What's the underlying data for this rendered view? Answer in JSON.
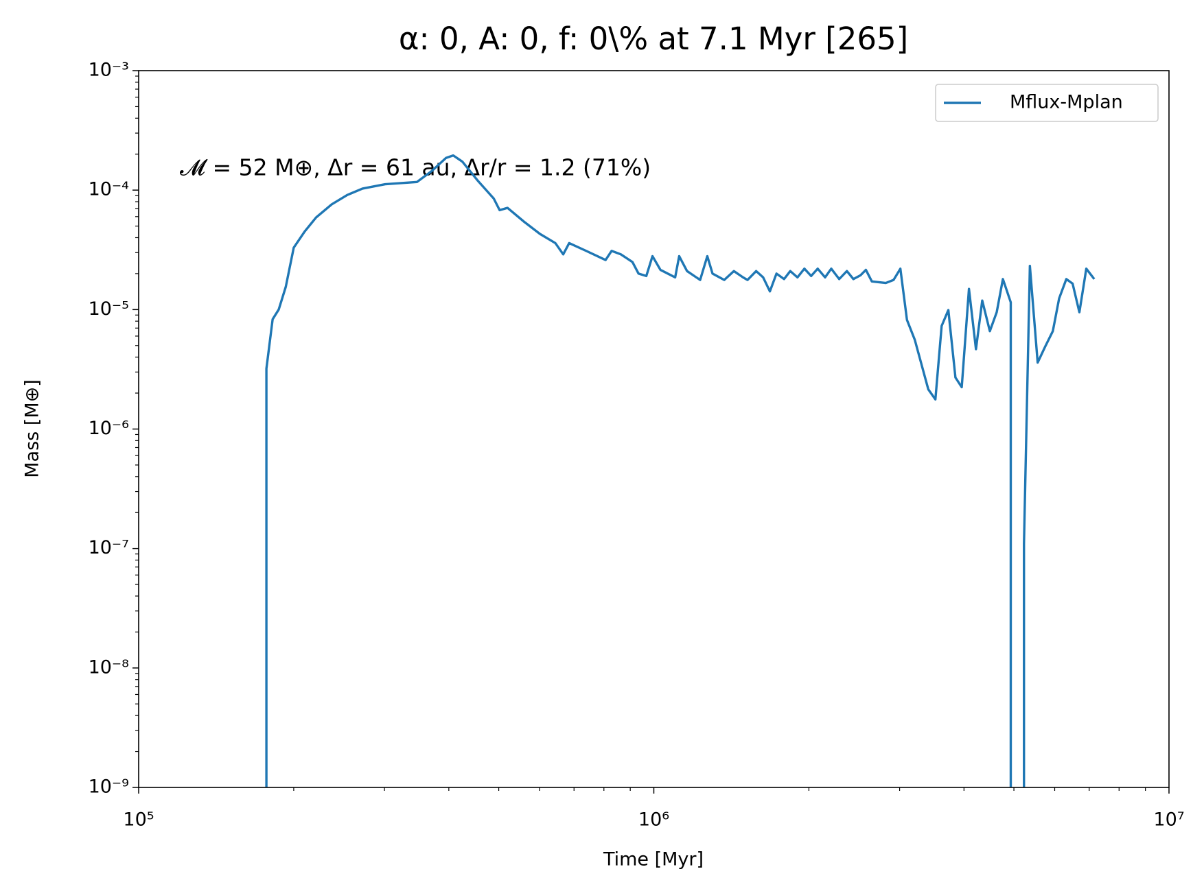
{
  "chart_data": {
    "type": "line",
    "title": "α: 0, A: 0, f: 0\\% at 7.1 Myr [265]",
    "xlabel": "Time [Myr]",
    "ylabel": "Mass [M⊕]",
    "annotation": "𝓜 = 52 M⊕, Δr = 61 au, Δr/r = 1.2 (71%)",
    "xscale": "log",
    "yscale": "log",
    "xlim": [
      100000,
      10000000
    ],
    "ylim": [
      1e-09,
      0.001
    ],
    "xticks": [
      {
        "value": 100000,
        "label": "10⁵"
      },
      {
        "value": 1000000,
        "label": "10⁶"
      },
      {
        "value": 10000000,
        "label": "10⁷"
      }
    ],
    "yticks": [
      {
        "value": 1e-09,
        "label": "10⁻⁹"
      },
      {
        "value": 1e-08,
        "label": "10⁻⁸"
      },
      {
        "value": 1e-07,
        "label": "10⁻⁷"
      },
      {
        "value": 1e-06,
        "label": "10⁻⁶"
      },
      {
        "value": 1e-05,
        "label": "10⁻⁵"
      },
      {
        "value": 0.0001,
        "label": "10⁻⁴"
      },
      {
        "value": 0.001,
        "label": "10⁻³"
      }
    ],
    "legend": "upper right",
    "series": [
      {
        "name": "Mflux-Mplan",
        "color": "#1f77b4",
        "x": [
          177000,
          177000,
          182000,
          187000,
          193000,
          200000,
          210000,
          221000,
          237000,
          254000,
          272000,
          301000,
          347000,
          371000,
          395000,
          408000,
          425000,
          456000,
          489000,
          502000,
          520000,
          561000,
          601000,
          644000,
          667000,
          685000,
          739000,
          806000,
          828000,
          863000,
          909000,
          934000,
          967000,
          994000,
          1030000,
          1100000,
          1120000,
          1160000,
          1230000,
          1270000,
          1300000,
          1370000,
          1430000,
          1490000,
          1520000,
          1580000,
          1630000,
          1680000,
          1730000,
          1790000,
          1840000,
          1900000,
          1960000,
          2020000,
          2080000,
          2150000,
          2210000,
          2290000,
          2370000,
          2440000,
          2520000,
          2580000,
          2650000,
          2820000,
          2920000,
          3010000,
          3100000,
          3210000,
          3410000,
          3520000,
          3620000,
          3730000,
          3850000,
          3960000,
          4090000,
          4220000,
          4340000,
          4490000,
          4630000,
          4760000,
          4930000,
          4930000,
          5230000,
          5230000,
          5370000,
          5560000,
          5750000,
          5950000,
          6120000,
          6320000,
          6500000,
          6700000,
          6910000,
          7160000
        ],
        "values": [
          1e-10,
          3.2e-06,
          8.3e-06,
          1e-05,
          1.55e-05,
          3.3e-05,
          4.5e-05,
          5.9e-05,
          7.6e-05,
          9.1e-05,
          0.000103,
          0.000112,
          0.000117,
          0.000145,
          0.000186,
          0.000195,
          0.000173,
          0.000119,
          8.5e-05,
          6.8e-05,
          7.1e-05,
          5.4e-05,
          4.3e-05,
          3.6e-05,
          2.9e-05,
          3.6e-05,
          3.1e-05,
          2.6e-05,
          3.1e-05,
          2.9e-05,
          2.5e-05,
          2e-05,
          1.91e-05,
          2.8e-05,
          2.15e-05,
          1.86e-05,
          2.8e-05,
          2.1e-05,
          1.77e-05,
          2.8e-05,
          2e-05,
          1.77e-05,
          2.1e-05,
          1.86e-05,
          1.77e-05,
          2.1e-05,
          1.86e-05,
          1.42e-05,
          2e-05,
          1.8e-05,
          2.1e-05,
          1.86e-05,
          2.2e-05,
          1.91e-05,
          2.2e-05,
          1.86e-05,
          2.2e-05,
          1.8e-05,
          2.1e-05,
          1.8e-05,
          1.94e-05,
          2.15e-05,
          1.72e-05,
          1.67e-05,
          1.77e-05,
          2.2e-05,
          8.2e-06,
          5.6e-06,
          2.15e-06,
          1.77e-06,
          7.3e-06,
          9.9e-06,
          2.7e-06,
          2.24e-06,
          1.49e-05,
          4.66e-06,
          1.19e-05,
          6.6e-06,
          9.5e-06,
          1.8e-05,
          1.15e-05,
          1e-10,
          1e-10,
          1.1e-07,
          2.32e-05,
          3.6e-06,
          4.9e-06,
          6.6e-06,
          1.24e-05,
          1.8e-05,
          1.65e-05,
          9.5e-06,
          2.2e-05,
          1.8e-05
        ]
      }
    ]
  }
}
